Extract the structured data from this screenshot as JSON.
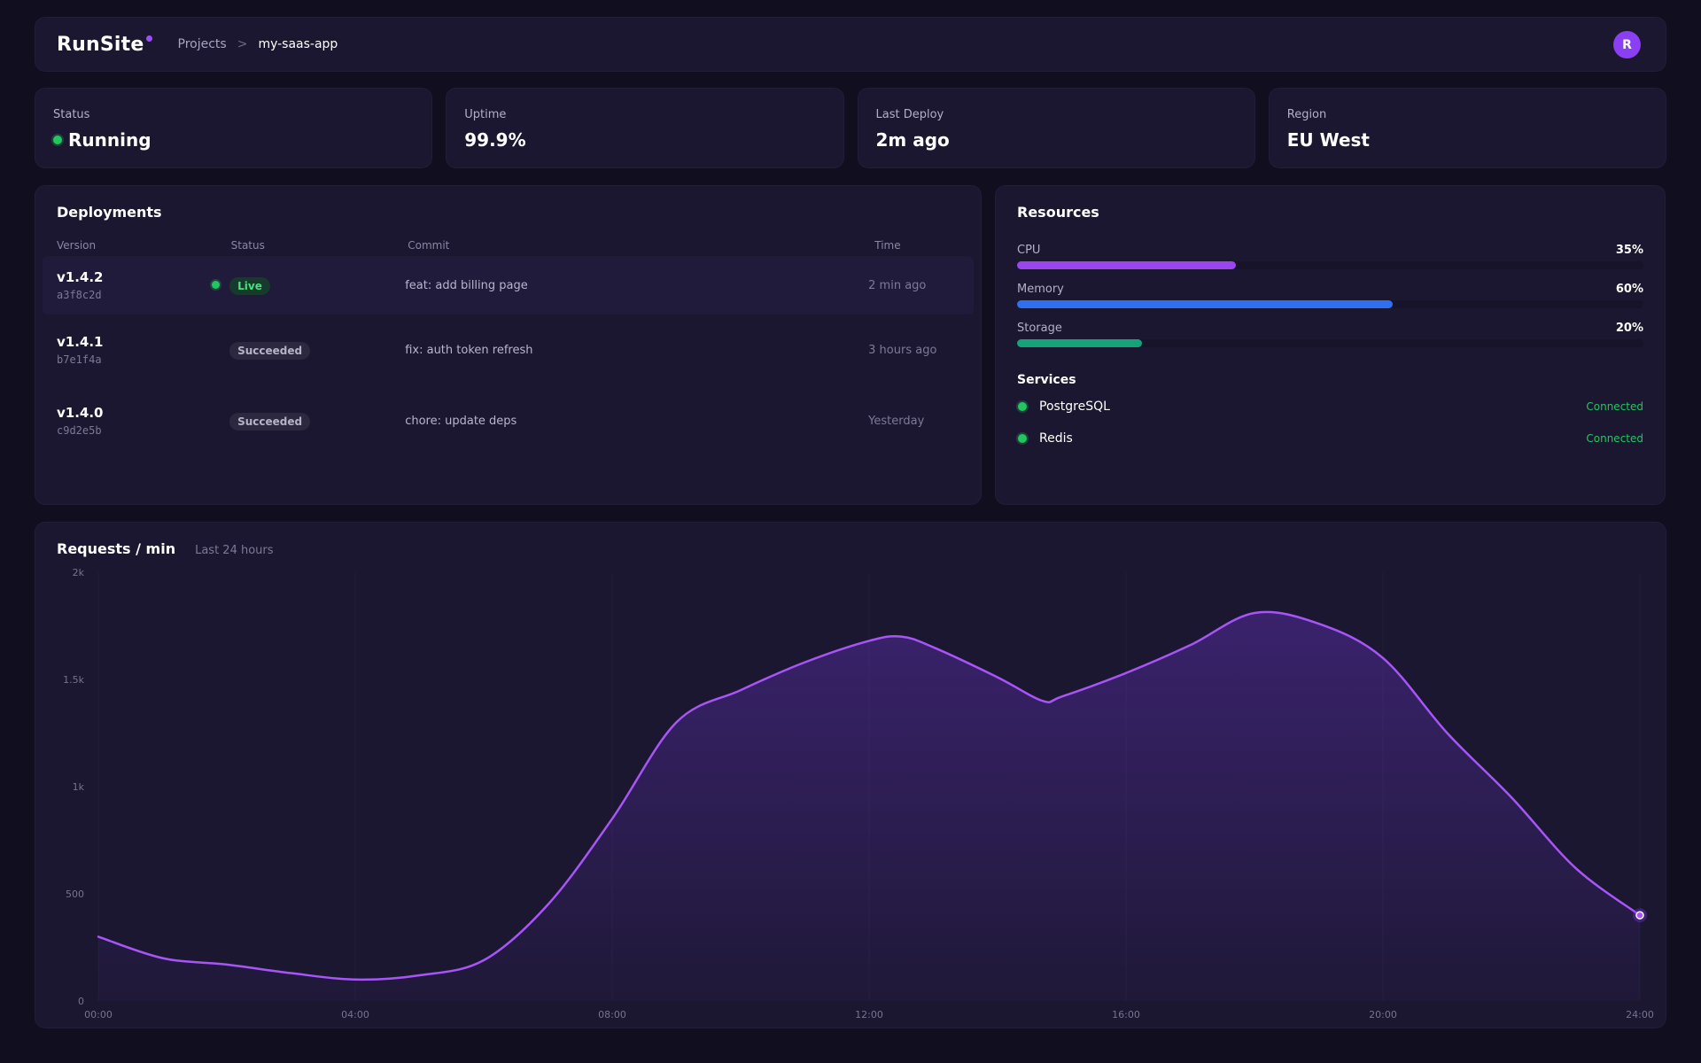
{
  "header": {
    "logo": "RunSite",
    "breadcrumb": {
      "root": "Projects",
      "separator": ">",
      "current": "my-saas-app"
    },
    "avatar_initial": "R"
  },
  "stats": [
    {
      "label": "Status",
      "value": "Running",
      "indicator": "green-dot"
    },
    {
      "label": "Uptime",
      "value": "99.9%"
    },
    {
      "label": "Last Deploy",
      "value": "2m ago"
    },
    {
      "label": "Region",
      "value": "EU West"
    }
  ],
  "deployments": {
    "title": "Deployments",
    "columns": [
      "Version",
      "Status",
      "Commit",
      "Time"
    ],
    "rows": [
      {
        "version": "v1.4.2",
        "hash": "a3f8c2d",
        "status": "Live",
        "commit": "feat: add billing page",
        "time": "2 min ago"
      },
      {
        "version": "v1.4.1",
        "hash": "b7e1f4a",
        "status": "Succeeded",
        "commit": "fix: auth token refresh",
        "time": "3 hours ago"
      },
      {
        "version": "v1.4.0",
        "hash": "c9d2e5b",
        "status": "Succeeded",
        "commit": "chore: update deps",
        "time": "Yesterday"
      }
    ]
  },
  "resources": {
    "title": "Resources",
    "items": [
      {
        "label": "CPU",
        "percent_label": "35%",
        "fraction": 0.35,
        "color": "#9b45f0"
      },
      {
        "label": "Memory",
        "percent_label": "60%",
        "fraction": 0.6,
        "color": "#2f6ff0"
      },
      {
        "label": "Storage",
        "percent_label": "20%",
        "fraction": 0.2,
        "color": "#16a37a"
      }
    ],
    "services_title": "Services",
    "services": [
      {
        "name": "PostgreSQL",
        "state": "Connected"
      },
      {
        "name": "Redis",
        "state": "Connected"
      }
    ]
  },
  "colors": {
    "accent": "#9b4dff",
    "success": "#22c55e",
    "line": "#a855f7"
  },
  "chart_data": {
    "type": "area",
    "title": "Requests / min",
    "subtitle": "Last 24 hours",
    "x_ticks": [
      "00:00",
      "04:00",
      "08:00",
      "12:00",
      "16:00",
      "20:00",
      "24:00"
    ],
    "y_ticks": [
      "0",
      "500",
      "1k",
      "1.5k",
      "2k"
    ],
    "ylim": [
      0,
      2000
    ],
    "xlim": [
      0,
      24
    ],
    "x": [
      0,
      1,
      2,
      3,
      4,
      5,
      6,
      7,
      8,
      9,
      10,
      11,
      12,
      12.5,
      13,
      14,
      14.7,
      15,
      16,
      17,
      18,
      19,
      20,
      21,
      22,
      23,
      24
    ],
    "y": [
      300,
      200,
      170,
      130,
      100,
      120,
      190,
      450,
      850,
      1300,
      1450,
      1580,
      1680,
      1700,
      1650,
      1510,
      1400,
      1420,
      1530,
      1660,
      1810,
      1760,
      1600,
      1250,
      950,
      620,
      400
    ]
  }
}
